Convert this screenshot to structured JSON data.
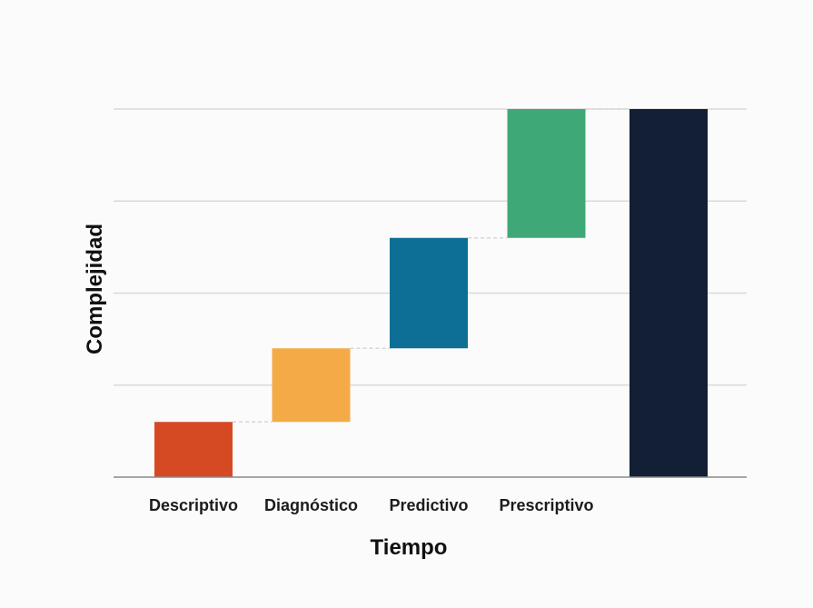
{
  "chart_data": {
    "type": "bar",
    "subtype": "waterfall",
    "categories": [
      "Descriptivo",
      "Diagnóstico",
      "Predictivo",
      "Prescriptivo",
      ""
    ],
    "values": [
      0.6,
      0.8,
      1.2,
      1.4,
      4.0
    ],
    "bases": [
      0,
      0.6,
      1.4,
      2.6,
      0
    ],
    "total_index": 4,
    "xlabel": "Tiempo",
    "ylabel": "Complejidad",
    "ylim": [
      0,
      4
    ],
    "grid": true,
    "legend": "none",
    "colors": [
      "#d64a23",
      "#f4ab47",
      "#0e6f96",
      "#3fa877",
      "#131f35"
    ],
    "gridline_color": "#dadada",
    "axis_color": "#8a8a8a",
    "connector_color": "#d6d6d6"
  }
}
